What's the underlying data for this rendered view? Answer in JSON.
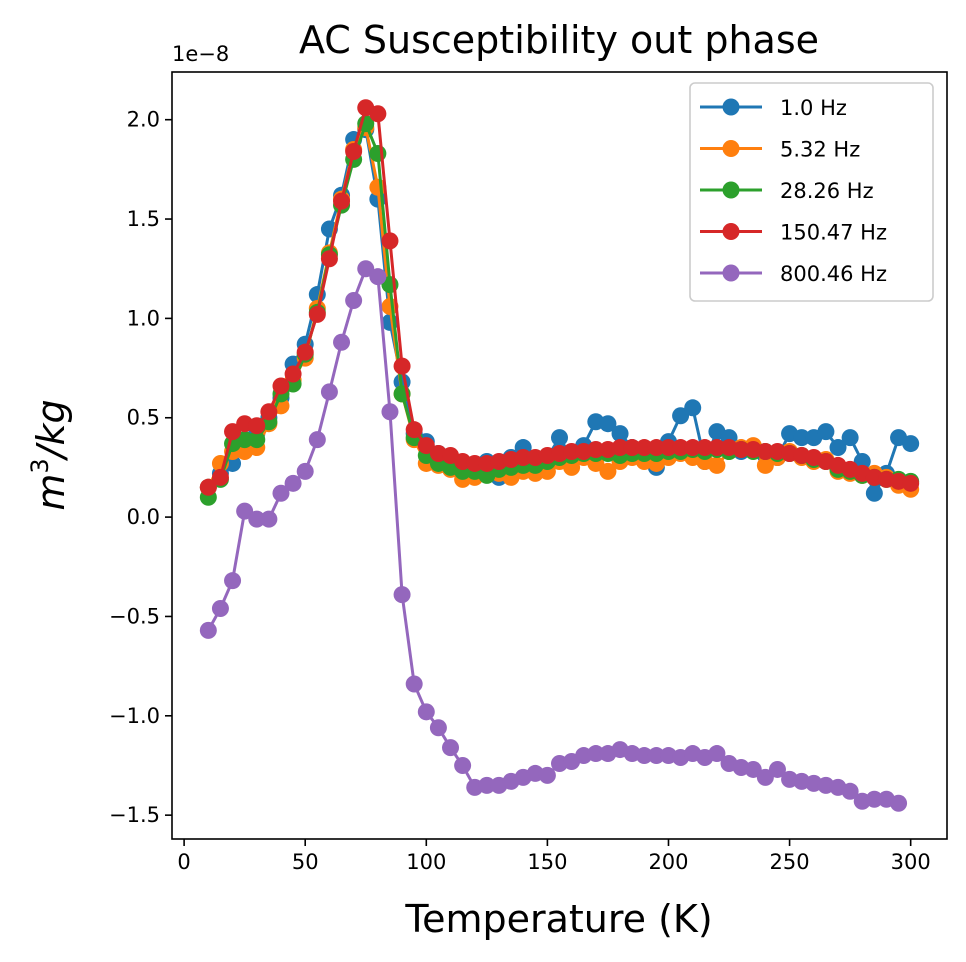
{
  "chart_data": {
    "type": "line",
    "title": "AC Susceptibility out phase",
    "xlabel": "Temperature (K)",
    "ylabel_base": "m",
    "ylabel_exp": "3",
    "ylabel_rest": "/kg",
    "y_offset_label": "1e−8",
    "xlim": [
      -5,
      315
    ],
    "ylim": [
      -1.62,
      2.24
    ],
    "xticks": [
      0,
      50,
      100,
      150,
      200,
      250,
      300
    ],
    "xtick_labels": [
      "0",
      "50",
      "100",
      "150",
      "200",
      "250",
      "300"
    ],
    "yticks": [
      -1.5,
      -1.0,
      -0.5,
      0.0,
      0.5,
      1.0,
      1.5,
      2.0
    ],
    "ytick_labels": [
      "−1.5",
      "−1.0",
      "−0.5",
      "0.0",
      "0.5",
      "1.0",
      "1.5",
      "2.0"
    ],
    "grid": false,
    "legend_position": "top-right",
    "series": [
      {
        "name": "1.0 Hz",
        "color": "#1f77b4",
        "x": [
          10,
          15,
          20,
          25,
          30,
          35,
          40,
          45,
          50,
          55,
          60,
          65,
          70,
          75,
          80,
          85,
          90,
          95,
          100,
          105,
          110,
          115,
          120,
          125,
          130,
          135,
          140,
          145,
          150,
          155,
          160,
          165,
          170,
          175,
          180,
          185,
          190,
          195,
          200,
          205,
          210,
          215,
          220,
          225,
          230,
          235,
          240,
          245,
          250,
          255,
          260,
          265,
          270,
          275,
          280,
          285,
          290,
          295,
          300
        ],
        "y": [
          0.15,
          0.22,
          0.27,
          0.38,
          0.42,
          0.5,
          0.6,
          0.77,
          0.87,
          1.12,
          1.45,
          1.62,
          1.9,
          1.95,
          1.6,
          0.98,
          0.68,
          0.42,
          0.38,
          0.32,
          0.3,
          0.27,
          0.22,
          0.28,
          0.2,
          0.3,
          0.35,
          0.27,
          0.3,
          0.4,
          0.3,
          0.36,
          0.48,
          0.47,
          0.42,
          0.35,
          0.3,
          0.25,
          0.38,
          0.51,
          0.55,
          0.28,
          0.43,
          0.4,
          0.33,
          0.35,
          0.31,
          0.3,
          0.42,
          0.4,
          0.4,
          0.43,
          0.35,
          0.4,
          0.28,
          0.12,
          0.22,
          0.4,
          0.37
        ]
      },
      {
        "name": "5.32 Hz",
        "color": "#ff7f0e",
        "x": [
          10,
          15,
          20,
          25,
          30,
          35,
          40,
          45,
          50,
          55,
          60,
          65,
          70,
          75,
          80,
          85,
          90,
          95,
          100,
          105,
          110,
          115,
          120,
          125,
          130,
          135,
          140,
          145,
          150,
          155,
          160,
          165,
          170,
          175,
          180,
          185,
          190,
          195,
          200,
          205,
          210,
          215,
          220,
          225,
          230,
          235,
          240,
          245,
          250,
          255,
          260,
          265,
          270,
          275,
          280,
          285,
          290,
          295,
          300
        ],
        "y": [
          0.15,
          0.27,
          0.33,
          0.33,
          0.35,
          0.47,
          0.56,
          0.69,
          0.8,
          1.05,
          1.33,
          1.6,
          1.85,
          1.96,
          1.66,
          1.06,
          0.62,
          0.39,
          0.27,
          0.26,
          0.24,
          0.19,
          0.2,
          0.22,
          0.22,
          0.2,
          0.23,
          0.22,
          0.23,
          0.28,
          0.25,
          0.3,
          0.27,
          0.23,
          0.28,
          0.3,
          0.28,
          0.27,
          0.3,
          0.32,
          0.3,
          0.28,
          0.26,
          0.33,
          0.35,
          0.36,
          0.26,
          0.3,
          0.33,
          0.3,
          0.28,
          0.29,
          0.23,
          0.22,
          0.21,
          0.22,
          0.2,
          0.16,
          0.14
        ]
      },
      {
        "name": "28.26 Hz",
        "color": "#2ca02c",
        "x": [
          10,
          15,
          20,
          25,
          30,
          35,
          40,
          45,
          50,
          55,
          60,
          65,
          70,
          75,
          80,
          85,
          90,
          95,
          100,
          105,
          110,
          115,
          120,
          125,
          130,
          135,
          140,
          145,
          150,
          155,
          160,
          165,
          170,
          175,
          180,
          185,
          190,
          195,
          200,
          205,
          210,
          215,
          220,
          225,
          230,
          235,
          240,
          245,
          250,
          255,
          260,
          265,
          270,
          275,
          280,
          285,
          290,
          295,
          300
        ],
        "y": [
          0.1,
          0.19,
          0.37,
          0.39,
          0.39,
          0.48,
          0.62,
          0.67,
          0.82,
          1.03,
          1.32,
          1.57,
          1.8,
          1.98,
          1.83,
          1.17,
          0.62,
          0.4,
          0.31,
          0.27,
          0.25,
          0.23,
          0.23,
          0.21,
          0.24,
          0.25,
          0.26,
          0.26,
          0.28,
          0.3,
          0.31,
          0.32,
          0.32,
          0.32,
          0.31,
          0.32,
          0.32,
          0.32,
          0.33,
          0.33,
          0.34,
          0.33,
          0.34,
          0.33,
          0.34,
          0.33,
          0.33,
          0.32,
          0.32,
          0.31,
          0.29,
          0.28,
          0.24,
          0.23,
          0.21,
          0.2,
          0.19,
          0.19,
          0.18
        ]
      },
      {
        "name": "150.47 Hz",
        "color": "#d62728",
        "x": [
          10,
          15,
          20,
          25,
          30,
          35,
          40,
          45,
          50,
          55,
          60,
          65,
          70,
          75,
          80,
          85,
          90,
          95,
          100,
          105,
          110,
          115,
          120,
          125,
          130,
          135,
          140,
          145,
          150,
          155,
          160,
          165,
          170,
          175,
          180,
          185,
          190,
          195,
          200,
          205,
          210,
          215,
          220,
          225,
          230,
          235,
          240,
          245,
          250,
          255,
          260,
          265,
          270,
          275,
          280,
          285,
          290,
          295,
          300
        ],
        "y": [
          0.15,
          0.2,
          0.43,
          0.47,
          0.46,
          0.53,
          0.66,
          0.72,
          0.83,
          1.02,
          1.3,
          1.59,
          1.84,
          2.06,
          2.03,
          1.39,
          0.76,
          0.44,
          0.36,
          0.32,
          0.31,
          0.28,
          0.27,
          0.27,
          0.28,
          0.29,
          0.3,
          0.3,
          0.31,
          0.32,
          0.33,
          0.33,
          0.34,
          0.34,
          0.35,
          0.35,
          0.35,
          0.35,
          0.35,
          0.35,
          0.35,
          0.35,
          0.35,
          0.35,
          0.34,
          0.34,
          0.33,
          0.33,
          0.32,
          0.31,
          0.3,
          0.28,
          0.26,
          0.24,
          0.22,
          0.2,
          0.19,
          0.18,
          0.17
        ]
      },
      {
        "name": "800.46 Hz",
        "color": "#9467bd",
        "x": [
          10,
          15,
          20,
          25,
          30,
          35,
          40,
          45,
          50,
          55,
          60,
          65,
          70,
          75,
          80,
          85,
          90,
          95,
          100,
          105,
          110,
          115,
          120,
          125,
          130,
          135,
          140,
          145,
          150,
          155,
          160,
          165,
          170,
          175,
          180,
          185,
          190,
          195,
          200,
          205,
          210,
          215,
          220,
          225,
          230,
          235,
          240,
          245,
          250,
          255,
          260,
          265,
          270,
          275,
          280,
          285,
          290,
          295
        ],
        "y": [
          -0.57,
          -0.46,
          -0.32,
          0.03,
          -0.01,
          -0.01,
          0.12,
          0.17,
          0.23,
          0.39,
          0.63,
          0.88,
          1.09,
          1.25,
          1.21,
          0.53,
          -0.39,
          -0.84,
          -0.98,
          -1.06,
          -1.16,
          -1.25,
          -1.36,
          -1.35,
          -1.35,
          -1.33,
          -1.31,
          -1.29,
          -1.3,
          -1.24,
          -1.23,
          -1.2,
          -1.19,
          -1.19,
          -1.17,
          -1.19,
          -1.2,
          -1.2,
          -1.2,
          -1.21,
          -1.19,
          -1.21,
          -1.19,
          -1.24,
          -1.26,
          -1.27,
          -1.31,
          -1.27,
          -1.32,
          -1.33,
          -1.34,
          -1.35,
          -1.36,
          -1.38,
          -1.43,
          -1.42,
          -1.42,
          -1.44
        ]
      }
    ]
  }
}
